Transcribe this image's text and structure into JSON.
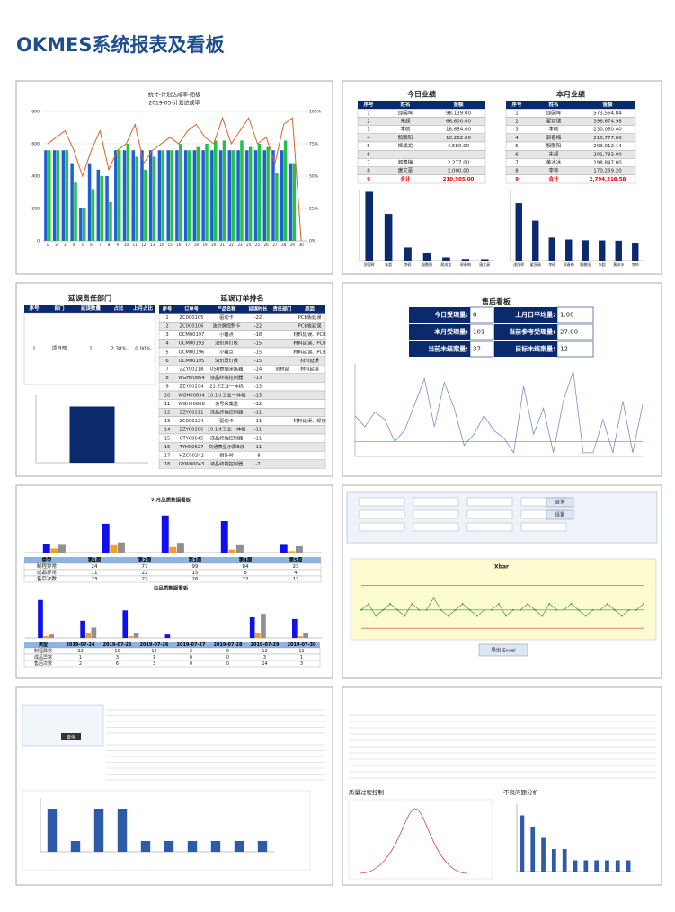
{
  "header": {
    "title": "OKMES系统报表及看板"
  },
  "plan": {
    "title": "统计-计划达成率-阳极",
    "subtitle": "2019-05-计划达成率",
    "ylim": [
      0,
      800
    ],
    "yticks": [
      0,
      200,
      400,
      600,
      800
    ],
    "y2lim": [
      0,
      100
    ],
    "y2ticks": [
      {
        "value": 0,
        "label": "0%"
      },
      {
        "value": 25,
        "label": "25%"
      },
      {
        "value": 50,
        "label": "50%"
      },
      {
        "value": 75,
        "label": "75%"
      },
      {
        "value": 100,
        "label": "100%"
      }
    ],
    "categories": [
      1,
      2,
      3,
      4,
      5,
      6,
      7,
      8,
      9,
      10,
      11,
      12,
      13,
      14,
      15,
      16,
      17,
      18,
      19,
      20,
      21,
      22,
      23,
      24,
      25,
      26,
      27,
      28,
      29,
      30
    ],
    "actual": [
      560,
      560,
      560,
      480,
      200,
      480,
      440,
      400,
      560,
      560,
      560,
      560,
      560,
      560,
      560,
      560,
      560,
      560,
      560,
      560,
      560,
      560,
      560,
      560,
      560,
      560,
      560,
      560,
      480,
      0
    ],
    "planned": [
      560,
      560,
      560,
      360,
      200,
      320,
      400,
      240,
      560,
      600,
      520,
      440,
      520,
      560,
      560,
      600,
      560,
      580,
      600,
      620,
      620,
      560,
      620,
      580,
      600,
      580,
      420,
      620,
      480,
      0
    ],
    "rate": [
      75,
      80,
      85,
      70,
      50,
      70,
      85,
      55,
      70,
      75,
      90,
      60,
      70,
      75,
      80,
      75,
      85,
      90,
      80,
      75,
      95,
      75,
      85,
      95,
      75,
      80,
      60,
      90,
      95,
      0
    ]
  },
  "today": {
    "title": "今日业绩",
    "columns": [
      "序号",
      "姓名",
      "金额"
    ],
    "rows": [
      [
        "1",
        "邵国晖",
        "98,139.00"
      ],
      [
        "2",
        "朱超",
        "66,600.00"
      ],
      [
        "3",
        "李硕",
        "18,654.00"
      ],
      [
        "4",
        "殷鹏阳",
        "10,282.00"
      ],
      [
        "5",
        "姬成龙",
        "4,580.00"
      ],
      [
        "6"
      ],
      [
        "7",
        "郭春梅",
        "2,277.00"
      ],
      [
        "8",
        "唐文豪",
        "2,000.00"
      ],
      [
        "9",
        "合计",
        "210,505.00"
      ]
    ],
    "chart": {
      "categories": [
        "邵国晖",
        "朱超",
        "李硕",
        "殷鹏阳",
        "姬成龙",
        "郭春梅",
        "唐文豪"
      ],
      "values": [
        98139,
        66600,
        18654,
        10282,
        4580,
        2277,
        2000
      ],
      "ylim": [
        0,
        100000
      ]
    }
  },
  "month": {
    "title": "本月业绩",
    "columns": [
      "序号",
      "姓名",
      "金额"
    ],
    "rows": [
      [
        "1",
        "邵国晖",
        "573,564.84"
      ],
      [
        "2",
        "翟宣瑞",
        "398,674.98"
      ],
      [
        "3",
        "李硕",
        "230,050.40"
      ],
      [
        "4",
        "郭春梅",
        "210,777.60"
      ],
      [
        "5",
        "殷鹏阳",
        "203,012.14"
      ],
      [
        "6",
        "朱超",
        "201,783.00"
      ],
      [
        "7",
        "黄冰冰",
        "198,847.00"
      ],
      [
        "8",
        "李帅",
        "170,269.20"
      ],
      [
        "9",
        "合计",
        "2,794,210.58"
      ]
    ],
    "chart": {
      "categories": [
        "邵国晖",
        "翟宣瑞",
        "李硕",
        "郭春梅",
        "殷鹏阳",
        "朱超",
        "黄冰冰",
        "李帅"
      ],
      "values": [
        573564.84,
        398674.98,
        230050.4,
        210777.6,
        203012.14,
        201783,
        198847,
        170269.2
      ],
      "ylim": [
        0,
        700000
      ]
    }
  },
  "delay_dept": {
    "title": "延误责任部门",
    "columns": [
      "序号",
      "部门",
      "延误数量",
      "占比",
      "上月占比"
    ],
    "rows": [
      [
        "1",
        "项目部",
        "1",
        "2.38%",
        "0.00%"
      ]
    ],
    "chart": {
      "values": [
        1
      ],
      "ylim": [
        0,
        1.2
      ]
    }
  },
  "delay_orders": {
    "title": "延误订单排名",
    "columns": [
      "序号",
      "订单号",
      "产品名称",
      "延误时长",
      "责任部门",
      "原因"
    ],
    "rows": [
      [
        "1",
        "ZC000105",
        "驱动卡",
        "-22",
        "",
        "PCB板延误"
      ],
      [
        "2",
        "ZC000106",
        "油价屏控制卡",
        "-22",
        "",
        "PCB板延误"
      ],
      [
        "3",
        "OCM00197",
        "小箱点",
        "-18",
        "",
        "材料延误、PCB"
      ],
      [
        "4",
        "OCM00193",
        "油价屏灯板",
        "-15",
        "",
        "材料延误、PCB"
      ],
      [
        "5",
        "OCM00196",
        "小箱点",
        "-15",
        "",
        "材料延误、PCB"
      ],
      [
        "6",
        "OCM00195",
        "油价屏灯板",
        "-15",
        "",
        "材料延误"
      ],
      [
        "7",
        "ZZY00218",
        "USB数据采集器",
        "-14",
        "资材部",
        "材料延误"
      ],
      [
        "8",
        "WGH00864",
        "液晶终端控制器",
        "-13"
      ],
      [
        "9",
        "ZZY00204",
        "21.5工业一体机",
        "-13"
      ],
      [
        "10",
        "WGH00834",
        "10.1寸工业一体机",
        "-13"
      ],
      [
        "11",
        "WGH00866",
        "信号采集盒",
        "-12"
      ],
      [
        "12",
        "ZZY00211",
        "液晶终端控制器",
        "-11"
      ],
      [
        "13",
        "ZC000124",
        "驱动卡",
        "-11",
        "",
        "材料延误、焊接"
      ],
      [
        "14",
        "ZZY00206",
        "10.1寸工业一体机",
        "-11"
      ],
      [
        "15",
        "GTY00645",
        "液晶终端控制器",
        "-11"
      ],
      [
        "16",
        "TYH00627",
        "交通表显示屏B液",
        "-11"
      ],
      [
        "17",
        "HZC00242",
        "倒计时",
        "-8"
      ],
      [
        "18",
        "GYW00043",
        "液晶终端控制器",
        "-7"
      ]
    ]
  },
  "service": {
    "title": "售后看板",
    "kpis": [
      {
        "label": "今日受理量:",
        "value": "8"
      },
      {
        "label": "上月日平均量:",
        "value": "1.00"
      },
      {
        "label": "本月受理量:",
        "value": "101"
      },
      {
        "label": "当前参考受理量:",
        "value": "27.00"
      },
      {
        "label": "当前未结案量:",
        "value": "37"
      },
      {
        "label": "目标未结案量:",
        "value": "12"
      }
    ],
    "values": [
      11,
      8,
      12,
      10,
      4,
      7,
      14,
      21,
      8,
      20,
      13,
      3,
      6,
      11,
      7,
      5,
      1,
      19,
      6,
      13,
      1,
      15,
      23,
      1,
      1,
      10,
      1,
      15,
      1,
      14
    ],
    "target": 4,
    "ylim": [
      0,
      25
    ]
  },
  "quality_week": {
    "title": "7 月品质数据看板",
    "columns": [
      "类型",
      "第1周",
      "第2周",
      "第3周",
      "第4周",
      "第5周"
    ],
    "rows": [
      [
        "制程异常",
        24,
        77,
        99,
        84,
        23
      ],
      [
        "成品异常",
        11,
        22,
        15,
        8,
        4
      ],
      [
        "售后次数",
        23,
        27,
        26,
        22,
        17
      ]
    ],
    "ylim": [
      0,
      120
    ]
  },
  "quality_day": {
    "title": "日品质数据看板",
    "columns": [
      "类型",
      "2019-07-24",
      "2019-07-25",
      "2019-07-26",
      "2019-07-27",
      "2019-07-28",
      "2019-07-29",
      "2019-07-30"
    ],
    "rows": [
      [
        "制程异常",
        22,
        10,
        16,
        2,
        0,
        12,
        11
      ],
      [
        "成品异常",
        1,
        3,
        1,
        0,
        0,
        3,
        1
      ],
      [
        "售后次数",
        2,
        6,
        3,
        0,
        0,
        14,
        3
      ]
    ],
    "ylim": [
      0,
      25
    ]
  },
  "spc": {
    "buttons": [
      "查询",
      "设置"
    ],
    "chart_title": "Xbar",
    "values": [
      12,
      13,
      11,
      12,
      13,
      12,
      11,
      13,
      12,
      12,
      14,
      12,
      11,
      12,
      13,
      12,
      11,
      12,
      12,
      13,
      11,
      12,
      12,
      13,
      12,
      11,
      13,
      12,
      12,
      13,
      12,
      11,
      12,
      12,
      13,
      12,
      11,
      12,
      12,
      13
    ],
    "ucl": 16,
    "cl": 12,
    "lcl": 9,
    "ylim": [
      8,
      18
    ],
    "export": "导出 Excel"
  },
  "report": {
    "button": "查询",
    "values": [
      4,
      1,
      4,
      4,
      1,
      1,
      1,
      1,
      1,
      1
    ],
    "ylim": [
      0,
      5
    ]
  },
  "analysis": {
    "left_title": "质量过程控制",
    "right_title": "不良问题分析",
    "values": [
      5,
      4,
      3,
      2,
      2,
      1,
      1,
      1,
      1,
      1,
      1
    ],
    "ylim": [
      0,
      6
    ]
  }
}
